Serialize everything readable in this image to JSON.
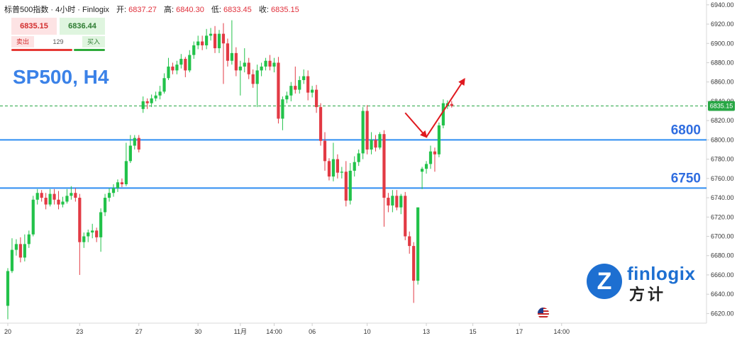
{
  "header": {
    "title": "标普500指数 · 4小时 · Finlogix",
    "open_label": "开:",
    "open_value": "6837.27",
    "high_label": "高:",
    "high_value": "6840.30",
    "low_label": "低:",
    "low_value": "6833.45",
    "close_label": "收:",
    "close_value": "6835.15"
  },
  "trade_panel": {
    "sell_price": "6835.15",
    "buy_price": "6836.44",
    "sell_label": "卖出",
    "buy_label": "买入",
    "spread": "129"
  },
  "symbol_label": "SP500, H4",
  "logo": {
    "text": "finlogix",
    "chinese": "方计",
    "badge_letter": "Z",
    "icon": "finlogix-z-logo-icon"
  },
  "flag_icon": "us-flag-icon",
  "colors": {
    "up": "#22c24a",
    "down": "#e23a44",
    "level_line": "#2f8ef2",
    "level_text": "#2f6de0",
    "arrow": "#e0191f",
    "price_line": "#28a745"
  },
  "chart_data": {
    "type": "candlestick",
    "price_axis": {
      "min": 6610,
      "max": 6945,
      "ticks": [
        "6940.00",
        "6920.00",
        "6900.00",
        "6880.00",
        "6860.00",
        "6840.00",
        "6820.00",
        "6800.00",
        "6780.00",
        "6760.00",
        "6740.00",
        "6720.00",
        "6700.00",
        "6680.00",
        "6660.00",
        "6640.00",
        "6620.00"
      ]
    },
    "time_axis": {
      "labels": [
        {
          "text": "20",
          "i": 0
        },
        {
          "text": "23",
          "i": 17
        },
        {
          "text": "27",
          "i": 31
        },
        {
          "text": "30",
          "i": 45
        },
        {
          "text": "11月",
          "i": 55
        },
        {
          "text": "14:00",
          "i": 63
        },
        {
          "text": "06",
          "i": 72
        },
        {
          "text": "10",
          "i": 85
        },
        {
          "text": "13",
          "i": 99
        },
        {
          "text": "15",
          "i": 110
        },
        {
          "text": "17",
          "i": 121
        },
        {
          "text": "14:00",
          "i": 131
        }
      ]
    },
    "current_price": "6835.15",
    "levels": [
      {
        "label": "6800",
        "value": 6800
      },
      {
        "label": "6750",
        "value": 6750
      }
    ],
    "forecast_arrows": [
      {
        "from": [
          94,
          6828
        ],
        "to": [
          99,
          6803
        ]
      },
      {
        "from": [
          99,
          6803
        ],
        "to": [
          108,
          6863
        ]
      }
    ],
    "candles": [
      [
        6628,
        6664,
        6614,
        6667
      ],
      [
        6664,
        6686,
        6662,
        6698
      ],
      [
        6686,
        6692,
        6680,
        6697
      ],
      [
        6692,
        6678,
        6673,
        6699
      ],
      [
        6678,
        6692,
        6674,
        6702
      ],
      [
        6692,
        6702,
        6688,
        6706
      ],
      [
        6702,
        6738,
        6700,
        6742
      ],
      [
        6738,
        6745,
        6733,
        6749
      ],
      [
        6745,
        6740,
        6736,
        6748
      ],
      [
        6740,
        6733,
        6728,
        6745
      ],
      [
        6733,
        6744,
        6731,
        6749
      ],
      [
        6744,
        6738,
        6733,
        6749
      ],
      [
        6738,
        6733,
        6728,
        6747
      ],
      [
        6733,
        6736,
        6730,
        6741
      ],
      [
        6736,
        6742,
        6734,
        6749
      ],
      [
        6742,
        6745,
        6738,
        6752
      ],
      [
        6745,
        6740,
        6736,
        6750
      ],
      [
        6740,
        6694,
        6660,
        6744
      ],
      [
        6694,
        6700,
        6688,
        6704
      ],
      [
        6700,
        6704,
        6694,
        6707
      ],
      [
        6704,
        6706,
        6698,
        6713
      ],
      [
        6706,
        6699,
        6694,
        6709
      ],
      [
        6699,
        6725,
        6684,
        6729
      ],
      [
        6725,
        6740,
        6721,
        6744
      ],
      [
        6740,
        6745,
        6736,
        6750
      ],
      [
        6745,
        6750,
        6741,
        6754
      ],
      [
        6750,
        6756,
        6746,
        6759
      ],
      [
        6756,
        6754,
        6751,
        6760
      ],
      [
        6754,
        6778,
        6752,
        6797
      ],
      [
        6778,
        6794,
        6776,
        6805
      ],
      [
        6794,
        6802,
        6790,
        6805
      ],
      [
        6802,
        6790,
        6787,
        6805
      ],
      [
        6832,
        6840,
        6828,
        6845
      ],
      [
        6840,
        6838,
        6832,
        6843
      ],
      [
        6838,
        6843,
        6834,
        6847
      ],
      [
        6843,
        6846,
        6840,
        6850
      ],
      [
        6846,
        6850,
        6842,
        6856
      ],
      [
        6850,
        6864,
        6848,
        6869
      ],
      [
        6864,
        6876,
        6862,
        6885
      ],
      [
        6876,
        6872,
        6868,
        6880
      ],
      [
        6872,
        6878,
        6868,
        6882
      ],
      [
        6878,
        6884,
        6874,
        6889
      ],
      [
        6884,
        6872,
        6865,
        6886
      ],
      [
        6872,
        6888,
        6870,
        6893
      ],
      [
        6888,
        6898,
        6884,
        6902
      ],
      [
        6898,
        6902,
        6894,
        6908
      ],
      [
        6902,
        6898,
        6893,
        6908
      ],
      [
        6898,
        6908,
        6894,
        6915
      ],
      [
        6908,
        6910,
        6903,
        6916
      ],
      [
        6910,
        6895,
        6890,
        6918
      ],
      [
        6895,
        6910,
        6890,
        6914
      ],
      [
        6910,
        6900,
        6858,
        6921
      ],
      [
        6900,
        6882,
        6876,
        6905
      ],
      [
        6882,
        6890,
        6878,
        6924
      ],
      [
        6890,
        6872,
        6866,
        6896
      ],
      [
        6872,
        6876,
        6846,
        6882
      ],
      [
        6876,
        6880,
        6870,
        6895
      ],
      [
        6880,
        6868,
        6863,
        6885
      ],
      [
        6868,
        6858,
        6854,
        6873
      ],
      [
        6858,
        6872,
        6834,
        6878
      ],
      [
        6872,
        6876,
        6866,
        6880
      ],
      [
        6876,
        6882,
        6872,
        6885
      ],
      [
        6882,
        6876,
        6872,
        6888
      ],
      [
        6876,
        6880,
        6870,
        6885
      ],
      [
        6880,
        6822,
        6817,
        6886
      ],
      [
        6822,
        6842,
        6810,
        6845
      ],
      [
        6842,
        6846,
        6838,
        6850
      ],
      [
        6846,
        6856,
        6840,
        6860
      ],
      [
        6856,
        6852,
        6848,
        6876
      ],
      [
        6852,
        6862,
        6848,
        6866
      ],
      [
        6862,
        6866,
        6858,
        6873
      ],
      [
        6866,
        6849,
        6841,
        6872
      ],
      [
        6849,
        6852,
        6844,
        6856
      ],
      [
        6852,
        6834,
        6828,
        6857
      ],
      [
        6834,
        6799,
        6794,
        6838
      ],
      [
        6799,
        6778,
        6768,
        6808
      ],
      [
        6778,
        6762,
        6758,
        6781
      ],
      [
        6762,
        6780,
        6757,
        6797
      ],
      [
        6780,
        6766,
        6760,
        6785
      ],
      [
        6766,
        6767,
        6760,
        6772
      ],
      [
        6767,
        6737,
        6731,
        6778
      ],
      [
        6737,
        6768,
        6733,
        6776
      ],
      [
        6768,
        6777,
        6762,
        6783
      ],
      [
        6777,
        6786,
        6773,
        6790
      ],
      [
        6786,
        6830,
        6780,
        6834
      ],
      [
        6830,
        6790,
        6785,
        6836
      ],
      [
        6790,
        6800,
        6785,
        6808
      ],
      [
        6800,
        6792,
        6788,
        6805
      ],
      [
        6792,
        6806,
        6790,
        6808
      ],
      [
        6806,
        6740,
        6710,
        6810
      ],
      [
        6740,
        6732,
        6725,
        6745
      ],
      [
        6732,
        6742,
        6725,
        6748
      ],
      [
        6742,
        6730,
        6727,
        6748
      ],
      [
        6730,
        6742,
        6723,
        6744
      ],
      [
        6742,
        6700,
        6696,
        6746
      ],
      [
        6700,
        6690,
        6682,
        6705
      ],
      [
        6690,
        6654,
        6631,
        6694
      ],
      [
        6654,
        6730,
        6650,
        6730
      ],
      [
        6767,
        6770,
        6749,
        6772
      ],
      [
        6770,
        6775,
        6765,
        6778
      ],
      [
        6775,
        6788,
        6770,
        6794
      ],
      [
        6788,
        6785,
        6767,
        6792
      ],
      [
        6785,
        6815,
        6782,
        6818
      ],
      [
        6815,
        6838,
        6812,
        6842
      ],
      [
        6835,
        6838,
        6832,
        6841
      ],
      [
        6837.27,
        6835.15,
        6833.45,
        6840.3
      ]
    ]
  }
}
